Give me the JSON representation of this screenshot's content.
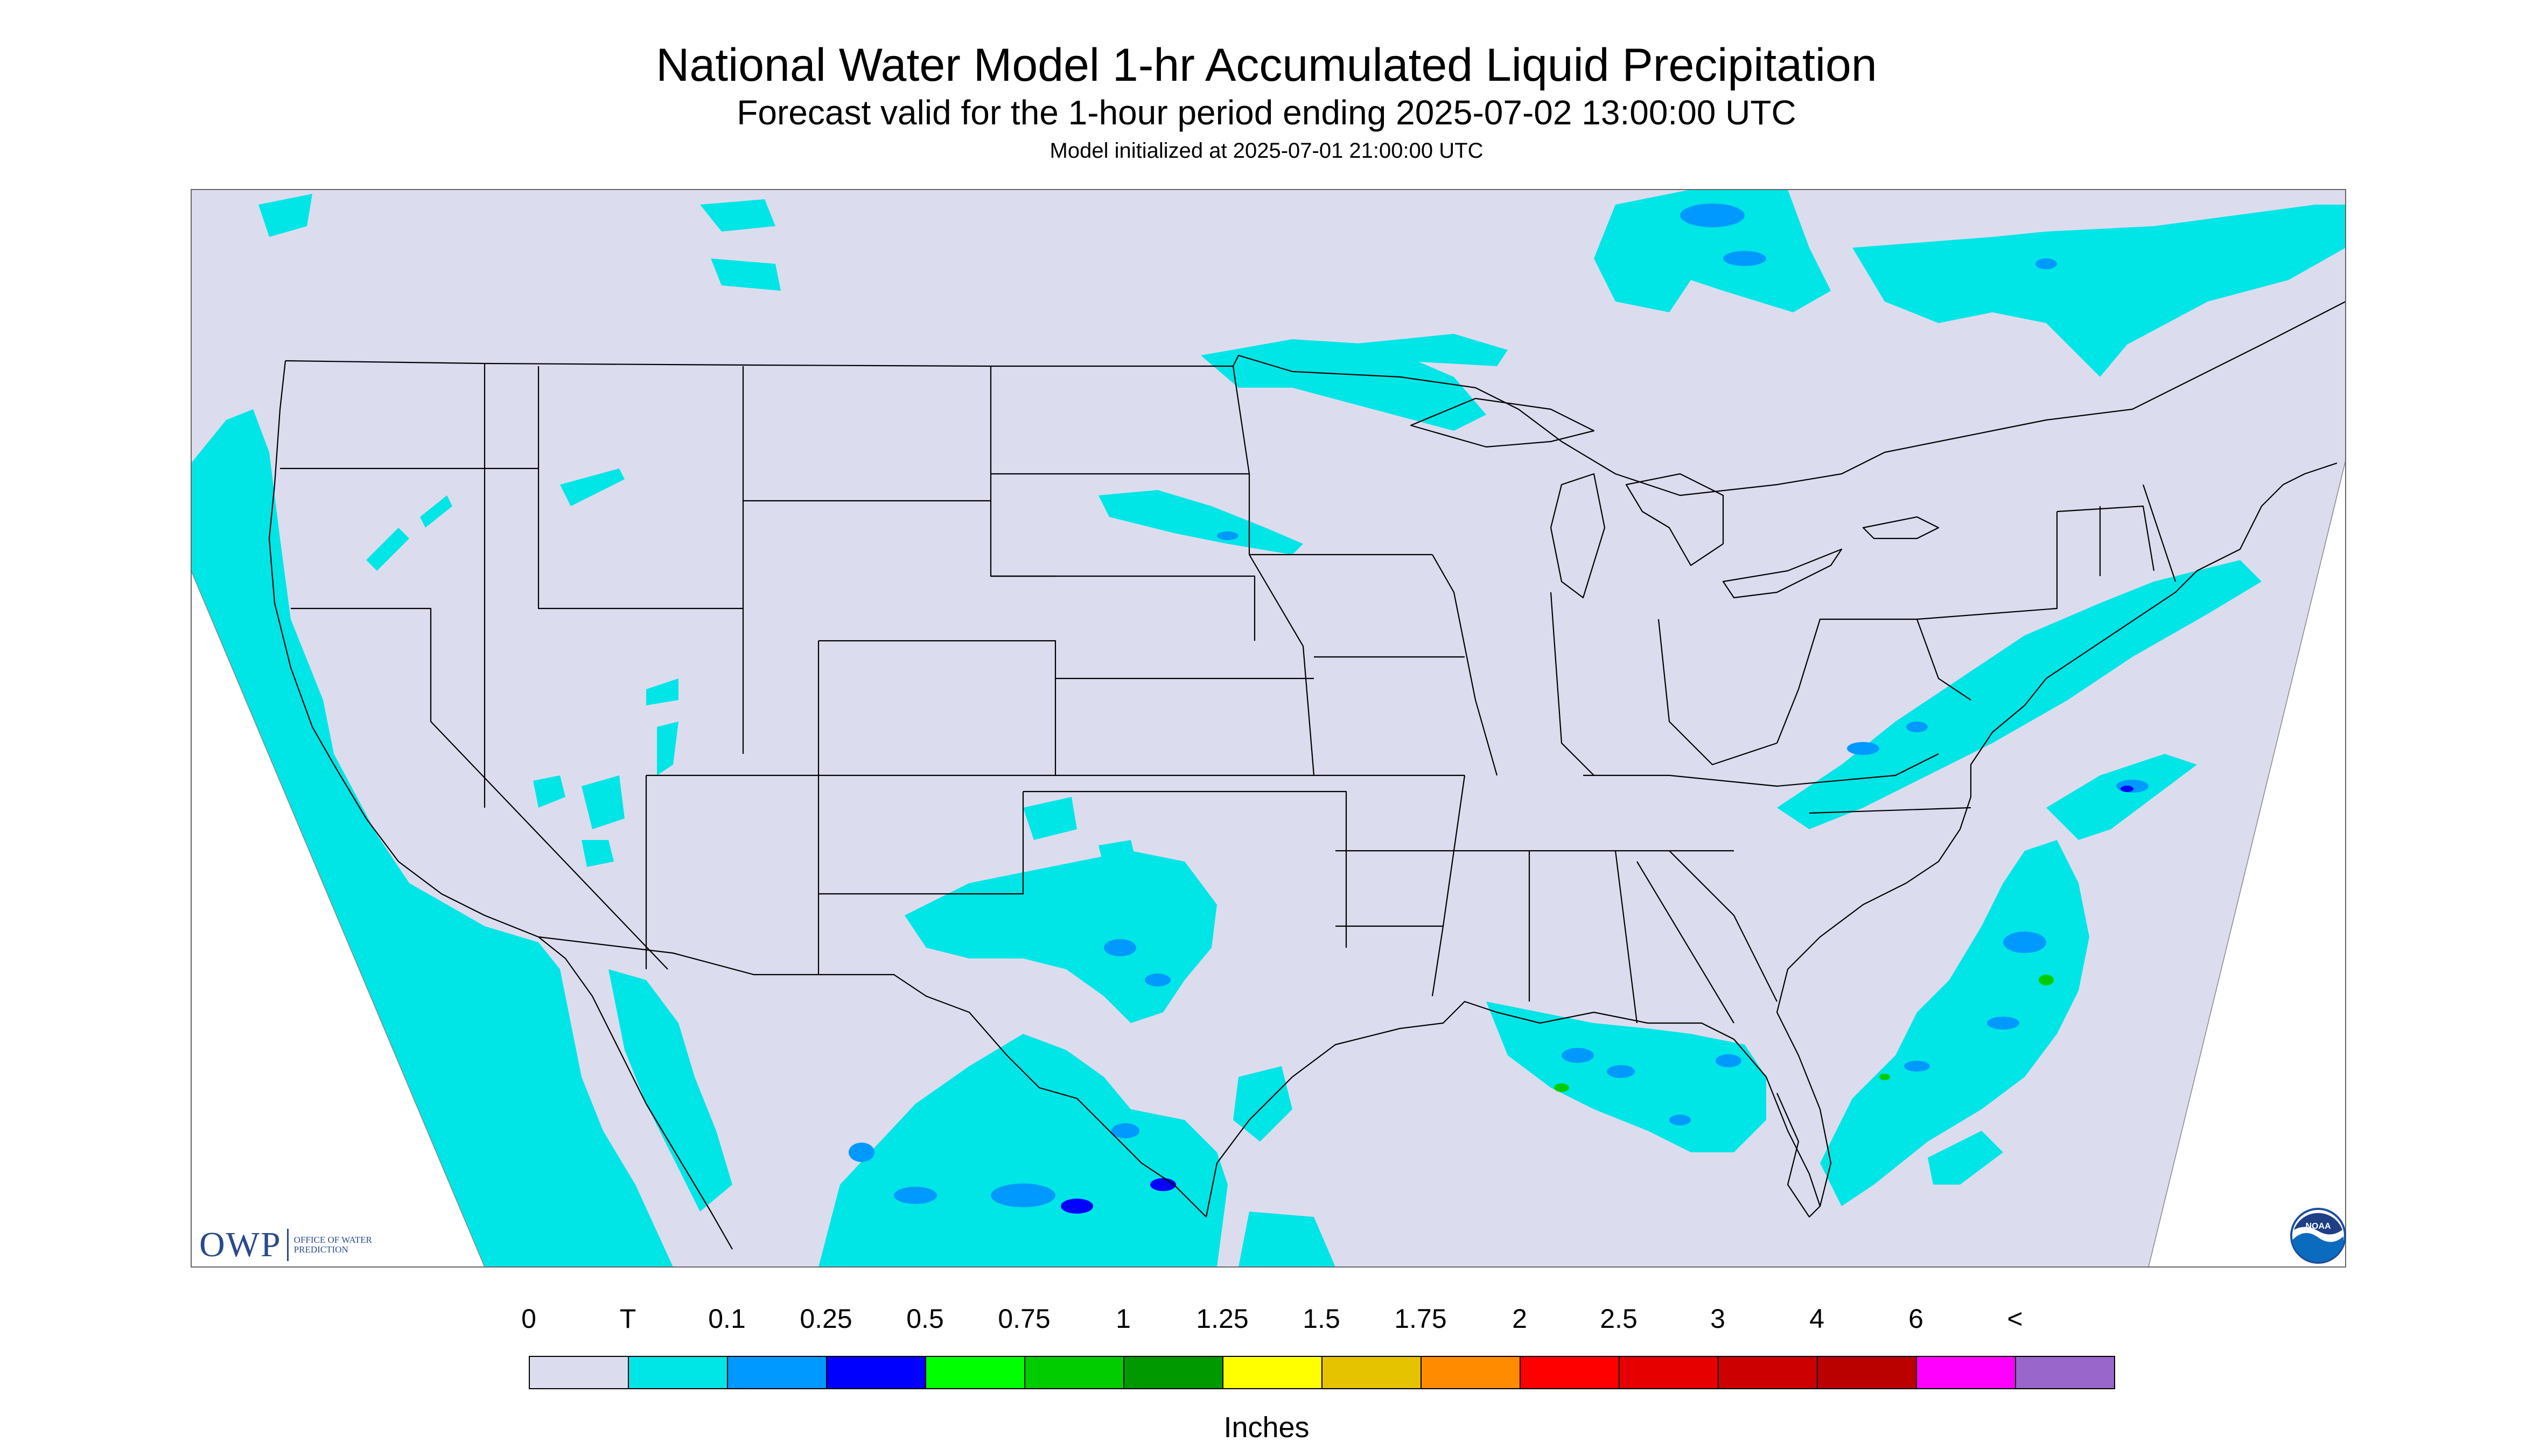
{
  "header": {
    "title": "National Water Model 1-hr Accumulated Liquid Precipitation",
    "subtitle": "Forecast valid for the 1-hour period ending 2025-07-02 13:00:00 UTC",
    "init": "Model initialized at 2025-07-01 21:00:00 UTC"
  },
  "map": {
    "background": "#dcdcef",
    "outside": "#ffffff",
    "boundary_color": "#000000",
    "precip_colors": {
      "trace": "#00e5e5",
      "light": "#0099ff",
      "moderate": "#0000ff",
      "heavy": "#00cc00"
    }
  },
  "legend": {
    "labels": [
      "0",
      "T",
      "0.1",
      "0.25",
      "0.5",
      "0.75",
      "1",
      "1.25",
      "1.5",
      "1.75",
      "2",
      "2.5",
      "3",
      "4",
      "6",
      "<"
    ],
    "colors": [
      "#dcdcef",
      "#00e5e5",
      "#0099ff",
      "#0000ff",
      "#00ff00",
      "#00cc00",
      "#009900",
      "#ffff00",
      "#e6c300",
      "#ff8c00",
      "#ff0000",
      "#e60000",
      "#cc0000",
      "#bb0000",
      "#ff00ff",
      "#9966cc"
    ],
    "units": "Inches"
  },
  "logos": {
    "owp_mark": "OWP",
    "owp_text": "OFFICE OF WATER PREDICTION",
    "noaa_text": "NOAA",
    "owp_icon": "owp-logo",
    "noaa_icon": "noaa-logo"
  }
}
